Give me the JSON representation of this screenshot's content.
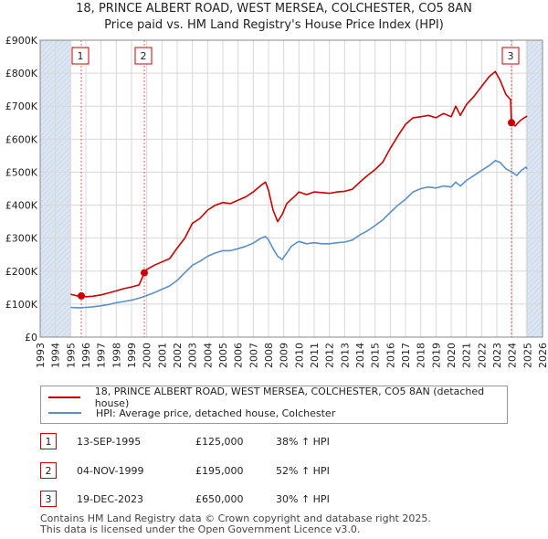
{
  "title_line1": "18, PRINCE ALBERT ROAD, WEST MERSEA, COLCHESTER, CO5 8AN",
  "title_line2": "Price paid vs. HM Land Registry's House Price Index (HPI)",
  "legend": {
    "property_label": "18, PRINCE ALBERT ROAD, WEST MERSEA, COLCHESTER, CO5 8AN (detached house)",
    "hpi_label": "HPI: Average price, detached house, Colchester"
  },
  "colors": {
    "property": "#cc0000",
    "hpi": "#5b8fcc",
    "shade": "#dce6f2",
    "grid": "#d8d8d8",
    "marker_box": "#cc0000"
  },
  "transactions": [
    {
      "num": "1",
      "date": "13-SEP-1995",
      "price": "£125,000",
      "hpi": "38% ↑ HPI"
    },
    {
      "num": "2",
      "date": "04-NOV-1999",
      "price": "£195,000",
      "hpi": "52% ↑ HPI"
    },
    {
      "num": "3",
      "date": "19-DEC-2023",
      "price": "£650,000",
      "hpi": "30% ↑ HPI"
    }
  ],
  "footer_line1": "Contains HM Land Registry data © Crown copyright and database right 2025.",
  "footer_line2": "This data is licensed under the Open Government Licence v3.0.",
  "chart_data": {
    "type": "line",
    "title": "18, PRINCE ALBERT ROAD, WEST MERSEA, COLCHESTER, CO5 8AN",
    "subtitle": "Price paid vs. HM Land Registry's House Price Index (HPI)",
    "xlim": [
      1993,
      2026
    ],
    "ylim": [
      0,
      900000
    ],
    "x_ticks": [
      1993,
      1994,
      1995,
      1996,
      1997,
      1998,
      1999,
      2000,
      2001,
      2002,
      2003,
      2004,
      2005,
      2006,
      2007,
      2008,
      2009,
      2010,
      2011,
      2012,
      2013,
      2014,
      2015,
      2016,
      2017,
      2018,
      2019,
      2020,
      2021,
      2022,
      2023,
      2024,
      2025,
      2026
    ],
    "y_ticks": [
      0,
      100000,
      200000,
      300000,
      400000,
      500000,
      600000,
      700000,
      800000,
      900000
    ],
    "y_tick_labels": [
      "£0",
      "£100K",
      "£200K",
      "£300K",
      "£400K",
      "£500K",
      "£600K",
      "£700K",
      "£800K",
      "£900K"
    ],
    "shaded_ranges": [
      [
        1993,
        1995.0
      ],
      [
        2024.9,
        2026
      ]
    ],
    "sale_markers": [
      {
        "label": "1",
        "x": 1995.7,
        "y": 125000
      },
      {
        "label": "2",
        "x": 1999.84,
        "y": 195000
      },
      {
        "label": "3",
        "x": 2023.96,
        "y": 650000
      }
    ],
    "series": [
      {
        "name": "18, PRINCE ALBERT ROAD, WEST MERSEA, COLCHESTER, CO5 8AN (detached house)",
        "x": [
          1995.0,
          1995.5,
          1995.7,
          1996.0,
          1996.5,
          1997.0,
          1997.5,
          1998.0,
          1998.5,
          1999.0,
          1999.5,
          1999.84,
          2000.0,
          2000.5,
          2001.0,
          2001.5,
          2002.0,
          2002.5,
          2003.0,
          2003.5,
          2004.0,
          2004.5,
          2005.0,
          2005.5,
          2006.0,
          2006.5,
          2007.0,
          2007.5,
          2007.8,
          2008.0,
          2008.3,
          2008.6,
          2008.9,
          2009.2,
          2009.5,
          2009.8,
          2010.0,
          2010.5,
          2011.0,
          2011.5,
          2012.0,
          2012.5,
          2013.0,
          2013.5,
          2014.0,
          2014.5,
          2015.0,
          2015.5,
          2016.0,
          2016.5,
          2017.0,
          2017.5,
          2018.0,
          2018.5,
          2019.0,
          2019.5,
          2020.0,
          2020.3,
          2020.6,
          2021.0,
          2021.5,
          2022.0,
          2022.5,
          2022.9,
          2023.2,
          2023.6,
          2023.9,
          2023.96,
          2024.2,
          2024.5,
          2024.8,
          2025.0
        ],
        "y": [
          130000,
          124000,
          125000,
          122000,
          124000,
          128000,
          134000,
          140000,
          147000,
          152000,
          158000,
          195000,
          205000,
          218000,
          228000,
          238000,
          270000,
          300000,
          345000,
          360000,
          385000,
          400000,
          408000,
          405000,
          415000,
          425000,
          440000,
          460000,
          470000,
          445000,
          385000,
          350000,
          372000,
          405000,
          418000,
          430000,
          440000,
          432000,
          440000,
          438000,
          436000,
          440000,
          442000,
          448000,
          470000,
          490000,
          508000,
          530000,
          572000,
          610000,
          645000,
          665000,
          668000,
          672000,
          665000,
          678000,
          668000,
          700000,
          672000,
          705000,
          730000,
          760000,
          790000,
          805000,
          780000,
          735000,
          720000,
          650000,
          640000,
          655000,
          665000,
          670000
        ]
      },
      {
        "name": "HPI: Average price, detached house, Colchester",
        "x": [
          1995.0,
          1995.5,
          1996.0,
          1996.5,
          1997.0,
          1997.5,
          1998.0,
          1998.5,
          1999.0,
          1999.5,
          2000.0,
          2000.5,
          2001.0,
          2001.5,
          2002.0,
          2002.5,
          2003.0,
          2003.5,
          2004.0,
          2004.5,
          2005.0,
          2005.5,
          2006.0,
          2006.5,
          2007.0,
          2007.5,
          2007.8,
          2008.0,
          2008.3,
          2008.6,
          2008.9,
          2009.2,
          2009.5,
          2009.8,
          2010.0,
          2010.5,
          2011.0,
          2011.5,
          2012.0,
          2012.5,
          2013.0,
          2013.5,
          2014.0,
          2014.5,
          2015.0,
          2015.5,
          2016.0,
          2016.5,
          2017.0,
          2017.5,
          2018.0,
          2018.5,
          2019.0,
          2019.5,
          2020.0,
          2020.3,
          2020.6,
          2021.0,
          2021.5,
          2022.0,
          2022.5,
          2022.9,
          2023.2,
          2023.6,
          2024.0,
          2024.3,
          2024.6,
          2024.9,
          2025.0
        ],
        "y": [
          90000,
          89000,
          90000,
          92000,
          95000,
          99000,
          104000,
          108000,
          112000,
          118000,
          126000,
          135000,
          145000,
          155000,
          172000,
          195000,
          218000,
          230000,
          245000,
          255000,
          262000,
          262000,
          268000,
          275000,
          285000,
          300000,
          305000,
          295000,
          268000,
          245000,
          235000,
          255000,
          275000,
          285000,
          290000,
          283000,
          286000,
          283000,
          283000,
          286000,
          288000,
          294000,
          310000,
          322000,
          338000,
          355000,
          378000,
          400000,
          418000,
          440000,
          450000,
          455000,
          452000,
          458000,
          455000,
          470000,
          458000,
          475000,
          490000,
          505000,
          520000,
          535000,
          530000,
          510000,
          500000,
          490000,
          505000,
          515000,
          510000
        ]
      }
    ]
  }
}
